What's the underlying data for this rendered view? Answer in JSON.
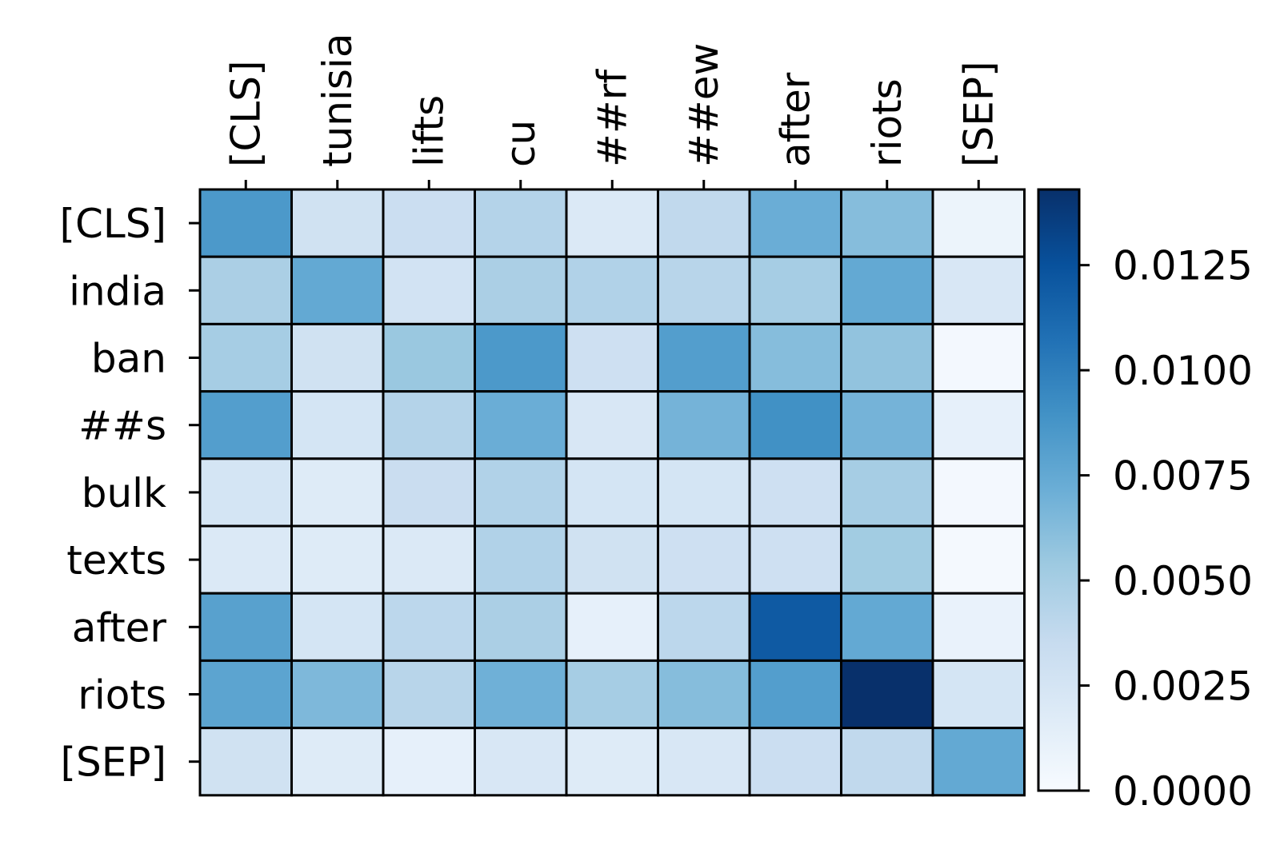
{
  "chart_data": {
    "type": "heatmap",
    "title": "",
    "xlabel": "",
    "ylabel": "",
    "x_labels": [
      "[CLS]",
      "tunisia",
      "lifts",
      "cu",
      "##rf",
      "##ew",
      "after",
      "riots",
      "[SEP]"
    ],
    "y_labels": [
      "[CLS]",
      "india",
      "ban",
      "##s",
      "bulk",
      "texts",
      "after",
      "riots",
      "[SEP]"
    ],
    "values": [
      [
        0.0085,
        0.0028,
        0.0032,
        0.0044,
        0.002,
        0.0038,
        0.0072,
        0.0062,
        0.0008
      ],
      [
        0.0048,
        0.0075,
        0.0027,
        0.0048,
        0.0045,
        0.0042,
        0.005,
        0.0075,
        0.0022
      ],
      [
        0.005,
        0.0028,
        0.0055,
        0.0085,
        0.003,
        0.0082,
        0.0062,
        0.0058,
        0.0003
      ],
      [
        0.0082,
        0.0025,
        0.0044,
        0.0072,
        0.0022,
        0.0068,
        0.009,
        0.0068,
        0.0012
      ],
      [
        0.0025,
        0.0018,
        0.0033,
        0.0045,
        0.0025,
        0.0025,
        0.003,
        0.005,
        0.0003
      ],
      [
        0.002,
        0.0018,
        0.002,
        0.0045,
        0.0028,
        0.003,
        0.003,
        0.0052,
        0.0002
      ],
      [
        0.008,
        0.0025,
        0.004,
        0.0048,
        0.0012,
        0.004,
        0.012,
        0.0075,
        0.001
      ],
      [
        0.0078,
        0.0065,
        0.0042,
        0.007,
        0.005,
        0.0062,
        0.0082,
        0.015,
        0.0025
      ],
      [
        0.0028,
        0.0018,
        0.0012,
        0.0022,
        0.0018,
        0.0022,
        0.0032,
        0.0038,
        0.0075
      ]
    ],
    "colorbar": {
      "range": [
        0,
        0.0143
      ],
      "ticks": [
        "0.0000",
        "0.0025",
        "0.0050",
        "0.0075",
        "0.0100",
        "0.0125"
      ],
      "colormap": "Blues"
    },
    "grid": true
  }
}
